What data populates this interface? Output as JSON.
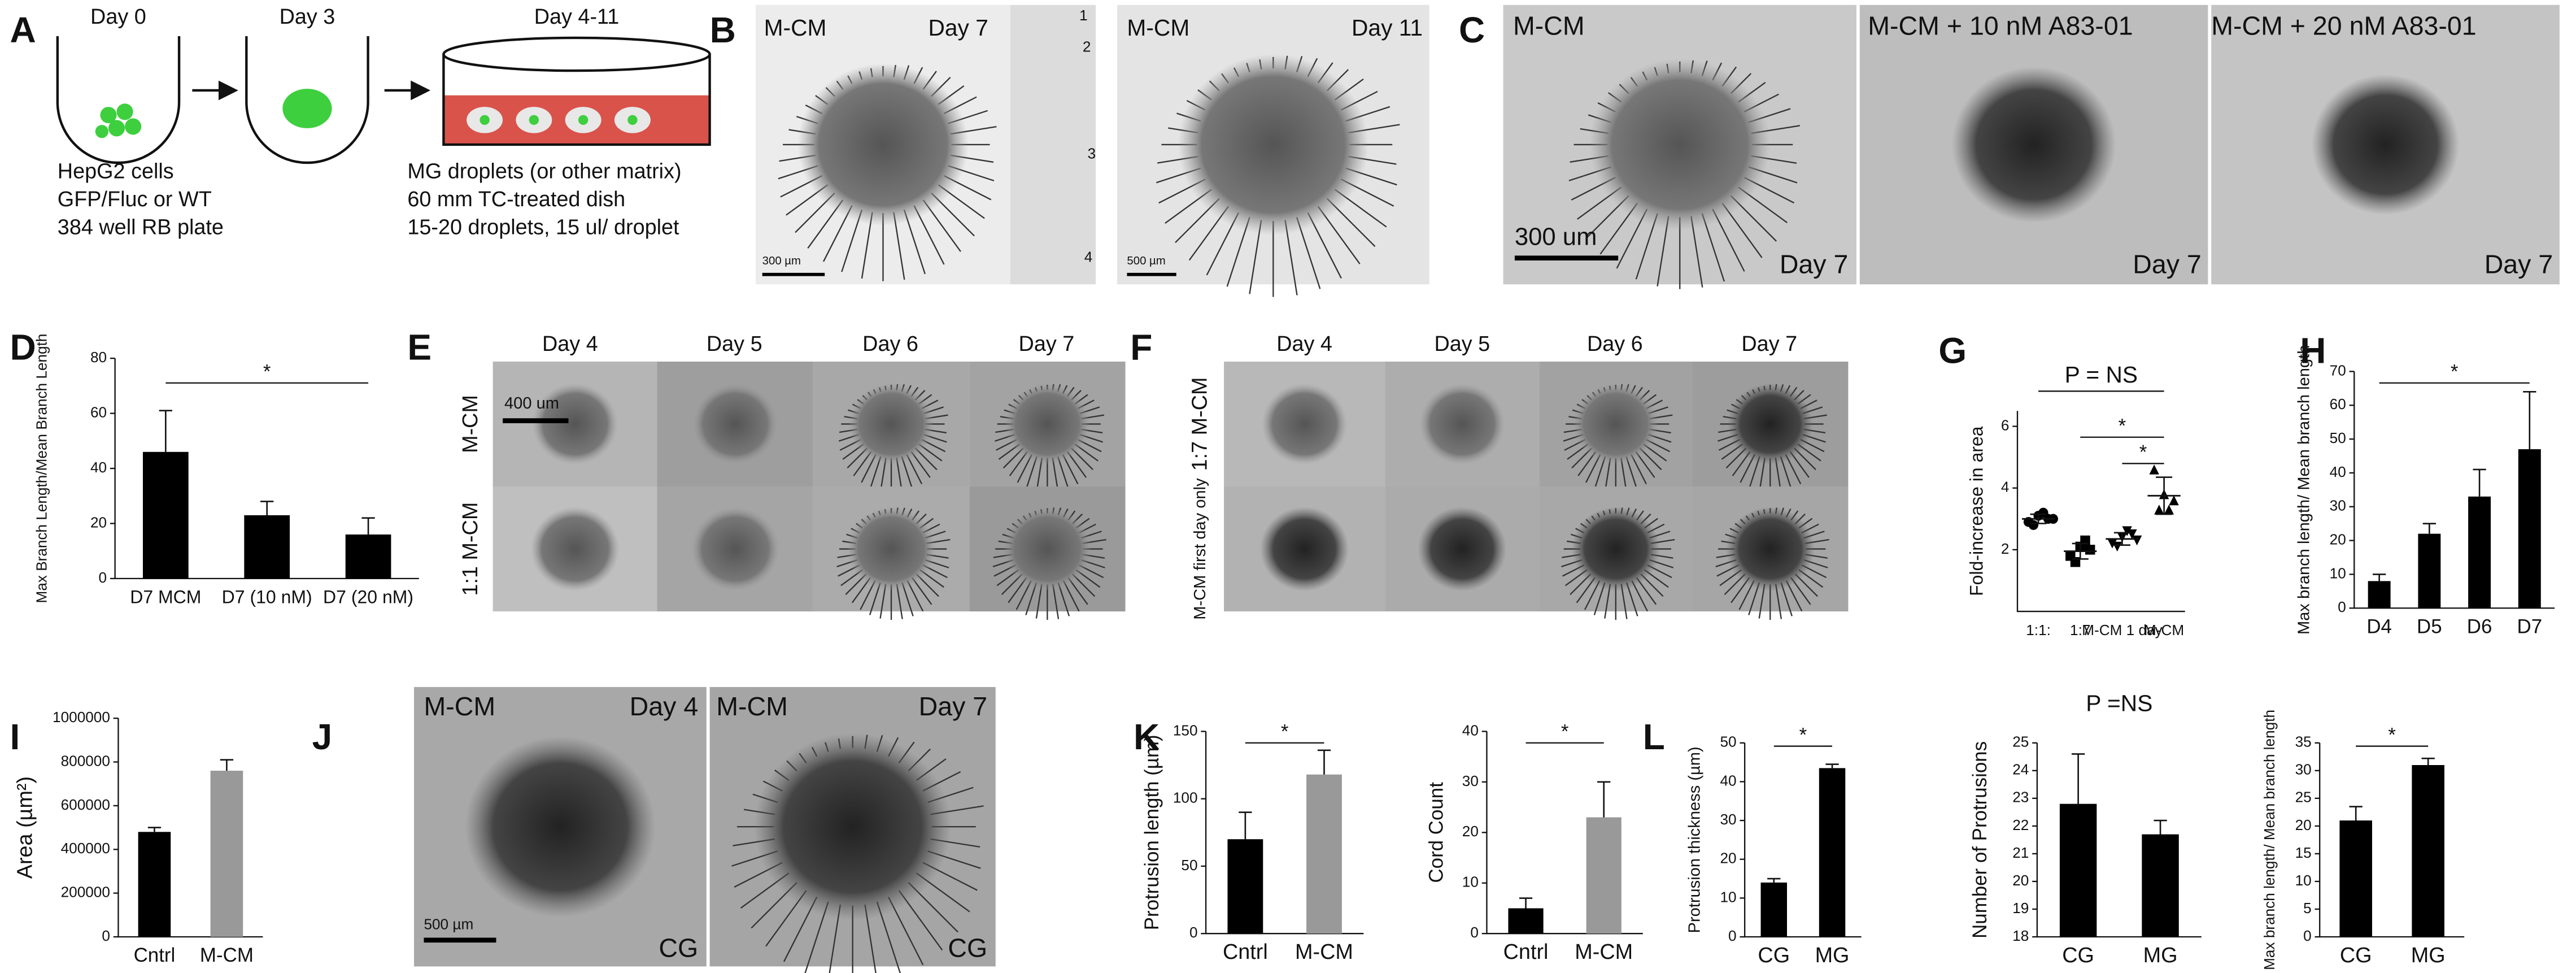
{
  "panel_letters": [
    "A",
    "B",
    "C",
    "D",
    "E",
    "F",
    "G",
    "H",
    "I",
    "J",
    "K",
    "L"
  ],
  "panel_a": {
    "steps": [
      "Day 0",
      "Day 3",
      "Day 4-11"
    ],
    "left_caption": [
      "HepG2 cells",
      "GFP/Fluc or WT",
      "384 well RB plate"
    ],
    "right_caption": [
      "MG droplets (or other matrix)",
      "60 mm TC-treated dish",
      "15-20 droplets, 15 ul/ droplet"
    ]
  },
  "panel_b": {
    "left_label": "M-CM",
    "left_day": "Day 7",
    "inset_numbers": [
      "1",
      "2",
      "3",
      "4"
    ],
    "left_scale": "300 µm",
    "right_label": "M-CM",
    "right_day": "Day 11",
    "right_scale": "500 µm"
  },
  "panel_c": {
    "titles": [
      "M-CM",
      "M-CM + 10 nM A83-01",
      "M-CM + 20 nM A83-01"
    ],
    "scale": "300 um",
    "days": [
      "Day 7",
      "Day 7",
      "Day 7"
    ]
  },
  "panel_e": {
    "days": [
      "Day 4",
      "Day 5",
      "Day 6",
      "Day 7"
    ],
    "rows": [
      "M-CM",
      "1:1 M-CM"
    ],
    "scale": "400 um"
  },
  "panel_f": {
    "days": [
      "Day 4",
      "Day 5",
      "Day 6",
      "Day 7"
    ],
    "rows": [
      "1:7  M-CM",
      "M-CM first day only"
    ]
  },
  "panel_j": {
    "left_label": "M-CM",
    "left_day": "Day 4",
    "right_label": "M-CM",
    "right_day": "Day 7",
    "scale": "500 µm",
    "matrix": [
      "CG",
      "CG"
    ]
  },
  "chart_data": [
    {
      "type": "bar",
      "ylabel": "Max Branch Length/Mean Branch Length",
      "categories": [
        "D7 MCM",
        "D7 (10 nM)",
        "D7 (20 nM)"
      ],
      "values": [
        46,
        23,
        16
      ],
      "errors": [
        15,
        5,
        6
      ],
      "colors": [
        "#000000",
        "#000000",
        "#000000"
      ],
      "ylim": [
        0,
        80
      ],
      "yticks": [
        0,
        20,
        40,
        60,
        80
      ],
      "annotations": [
        "*"
      ]
    },
    {
      "type": "strip",
      "ylabel": "Fold-increase in area",
      "categories": [
        "1:1:",
        "1:7",
        "M-CM 1 day",
        "M-CM"
      ],
      "points": [
        [
          2.9,
          3.1,
          3.0,
          2.8,
          3.2,
          3.0
        ],
        [
          1.8,
          2.1,
          2.0,
          1.6,
          2.3
        ],
        [
          2.2,
          2.4,
          2.5,
          2.1,
          2.6,
          2.3
        ],
        [
          4.6,
          3.8,
          3.6,
          3.3,
          3.3
        ]
      ],
      "means": [
        3.0,
        1.95,
        2.35,
        3.75
      ],
      "errors": [
        0.15,
        0.25,
        0.2,
        0.6
      ],
      "color": "#000000",
      "ylim": [
        0,
        6.5
      ],
      "yticks": [
        2,
        4,
        6
      ],
      "annotations": [
        "P = NS",
        "*",
        "*"
      ]
    },
    {
      "type": "bar",
      "ylabel": "Max branch length/ Mean branch length",
      "categories": [
        "D4",
        "D5",
        "D6",
        "D7"
      ],
      "values": [
        8,
        22,
        33,
        47
      ],
      "errors": [
        2,
        3,
        8,
        17
      ],
      "colors": [
        "#000000",
        "#000000",
        "#000000",
        "#000000"
      ],
      "ylim": [
        0,
        70
      ],
      "yticks": [
        0,
        10,
        20,
        30,
        40,
        50,
        60,
        70
      ],
      "annotations": [
        "*"
      ]
    },
    {
      "type": "bar",
      "ylabel": "Area (µm²)",
      "categories": [
        "Cntrl",
        "M-CM"
      ],
      "values": [
        480000,
        760000
      ],
      "errors": [
        20000,
        50000
      ],
      "colors": [
        "#000000",
        "#999999"
      ],
      "ylim": [
        0,
        1000000
      ],
      "yticks": [
        0,
        200000,
        400000,
        600000,
        800000,
        1000000
      ],
      "annotations": []
    },
    {
      "type": "bar",
      "ylabel": "Protrusion length (µm)",
      "categories": [
        "Cntrl",
        "M-CM"
      ],
      "values": [
        70,
        118
      ],
      "errors": [
        20,
        18
      ],
      "colors": [
        "#000000",
        "#999999"
      ],
      "ylim": [
        0,
        150
      ],
      "yticks": [
        0,
        50,
        100,
        150
      ],
      "annotations": [
        "*"
      ]
    },
    {
      "type": "bar",
      "ylabel": "Cord Count",
      "categories": [
        "Cntrl",
        "M-CM"
      ],
      "values": [
        5,
        23
      ],
      "errors": [
        2,
        7
      ],
      "colors": [
        "#000000",
        "#999999"
      ],
      "ylim": [
        0,
        40
      ],
      "yticks": [
        0,
        10,
        20,
        30,
        40
      ],
      "annotations": [
        "*"
      ]
    },
    {
      "type": "bar",
      "ylabel": "Protrusion thickness (µm)",
      "categories": [
        "CG",
        "MG"
      ],
      "values": [
        14,
        43.5
      ],
      "errors": [
        1,
        1
      ],
      "colors": [
        "#000000",
        "#000000"
      ],
      "ylim": [
        0,
        50
      ],
      "yticks": [
        0,
        10,
        20,
        30,
        40,
        50
      ],
      "annotations": [
        "*"
      ]
    },
    {
      "type": "bar",
      "ylabel": "Number of Protrusions",
      "categories": [
        "CG",
        "MG"
      ],
      "values": [
        22.8,
        21.7
      ],
      "errors": [
        1.8,
        0.5
      ],
      "colors": [
        "#000000",
        "#000000"
      ],
      "ylim": [
        18,
        25
      ],
      "yticks": [
        18,
        19,
        20,
        21,
        22,
        23,
        24,
        25
      ],
      "annotations": [
        "P =NS"
      ]
    },
    {
      "type": "bar",
      "ylabel": "Max branch length/ Mean branch length",
      "categories": [
        "CG",
        "MG"
      ],
      "values": [
        21,
        31
      ],
      "errors": [
        2.5,
        1.2
      ],
      "colors": [
        "#000000",
        "#000000"
      ],
      "ylim": [
        0,
        35
      ],
      "yticks": [
        0,
        5,
        10,
        15,
        20,
        25,
        30,
        35
      ],
      "annotations": [
        "*"
      ]
    }
  ]
}
